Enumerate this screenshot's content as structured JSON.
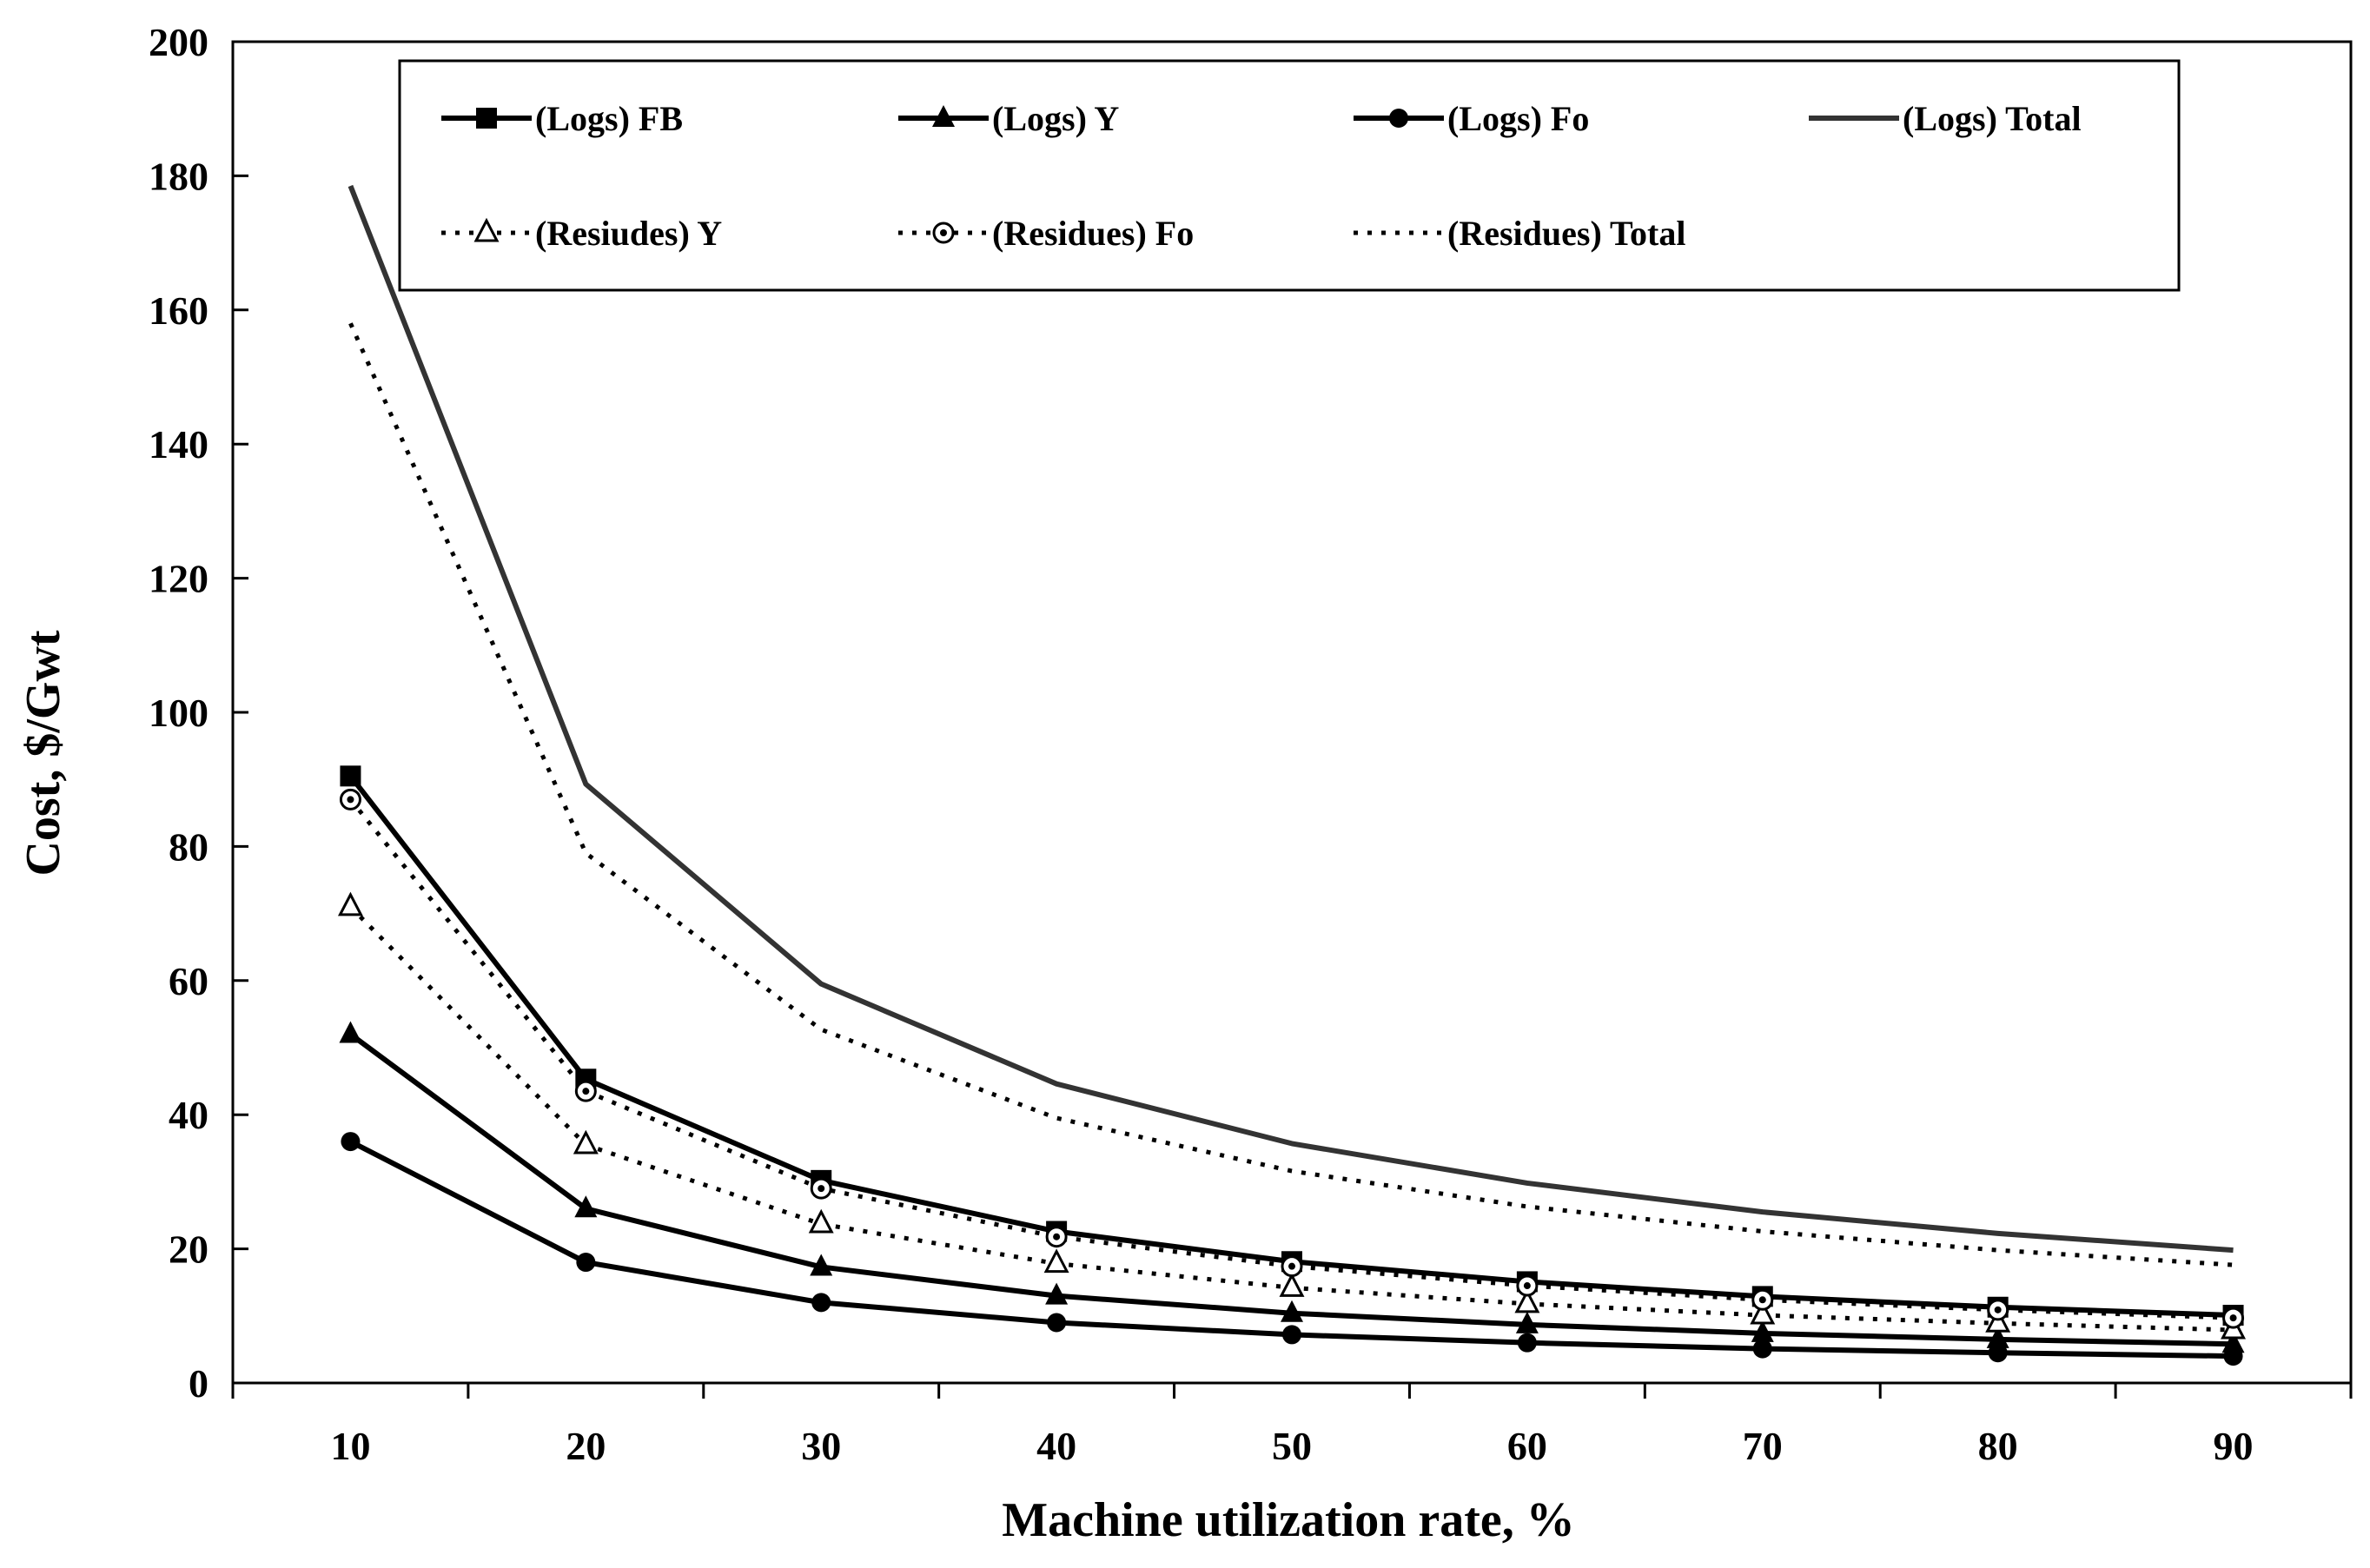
{
  "chart_data": {
    "type": "line",
    "xlabel": "Machine utilization rate, %",
    "ylabel": "Cost, $/Gwt",
    "categories": [
      10,
      20,
      30,
      40,
      50,
      60,
      70,
      80,
      90
    ],
    "ylim": [
      0,
      200
    ],
    "yticks": [
      0,
      20,
      40,
      60,
      80,
      100,
      120,
      140,
      160,
      180,
      200
    ],
    "grid": false,
    "legend_position": "top",
    "series": [
      {
        "name": "(Logs) FB",
        "style": "solid",
        "marker": "square",
        "color": "#000000",
        "values": [
          90.5,
          45.3,
          30.2,
          22.6,
          18.1,
          15.1,
          12.9,
          11.3,
          10.1
        ]
      },
      {
        "name": "(Logs) Y",
        "style": "solid",
        "marker": "triangle",
        "color": "#000000",
        "values": [
          52,
          26,
          17.3,
          13,
          10.4,
          8.7,
          7.4,
          6.5,
          5.8
        ]
      },
      {
        "name": "(Logs) Fo",
        "style": "solid",
        "marker": "circle",
        "color": "#000000",
        "values": [
          36,
          18,
          12,
          9,
          7.2,
          6,
          5.1,
          4.5,
          4
        ]
      },
      {
        "name": "(Logs) Total",
        "style": "solid",
        "marker": "none",
        "color": "#333333",
        "values": [
          178.5,
          89.3,
          59.5,
          44.6,
          35.7,
          29.8,
          25.5,
          22.3,
          19.8
        ]
      },
      {
        "name": "(Resiudes) Y",
        "style": "dotted",
        "marker": "open-triangle",
        "color": "#000000",
        "values": [
          71,
          35.5,
          23.7,
          17.8,
          14.2,
          11.8,
          10.1,
          8.9,
          7.9
        ]
      },
      {
        "name": "(Residues) Fo",
        "style": "dotted",
        "marker": "open-circle",
        "color": "#000000",
        "values": [
          87,
          43.5,
          29,
          21.8,
          17.4,
          14.5,
          12.4,
          10.9,
          9.7
        ]
      },
      {
        "name": "(Residues) Total",
        "style": "dotted",
        "marker": "none",
        "color": "#000000",
        "values": [
          158,
          79,
          52.7,
          39.5,
          31.6,
          26.3,
          22.6,
          19.8,
          17.6
        ]
      }
    ]
  }
}
